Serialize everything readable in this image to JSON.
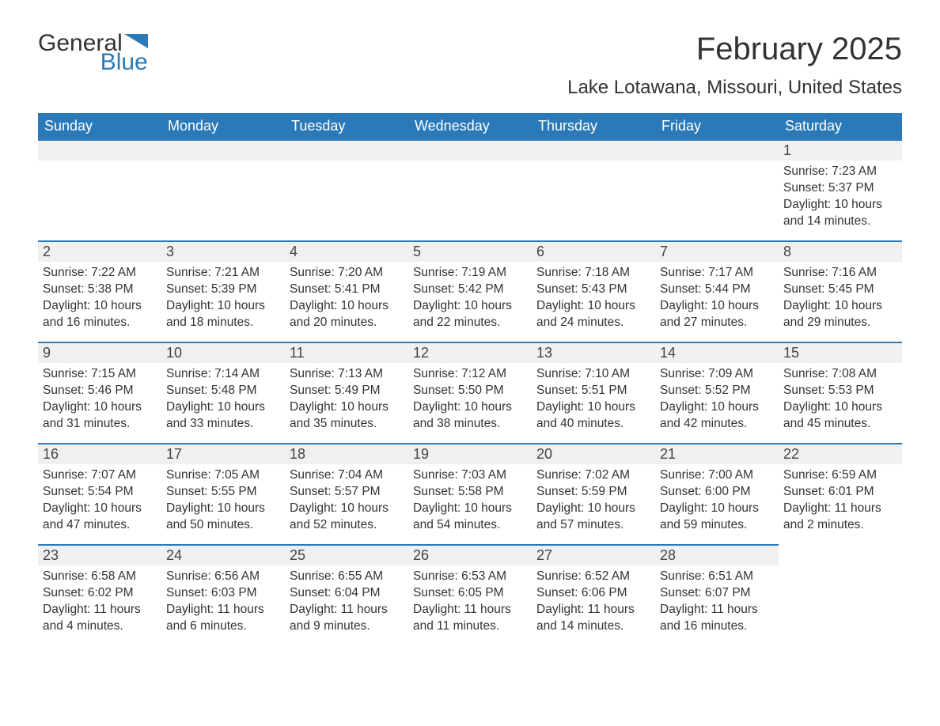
{
  "logo": {
    "general": "General",
    "blue": "Blue",
    "flag_color": "#2a7ab9"
  },
  "title": "February 2025",
  "location": "Lake Lotawana, Missouri, United States",
  "colors": {
    "header_bg": "#2a7ab9",
    "header_text": "#ffffff",
    "daynum_bg": "#f0f0f0",
    "row_border": "#2a7ab9",
    "body_text": "#333333",
    "page_bg": "#ffffff"
  },
  "weekdays": [
    "Sunday",
    "Monday",
    "Tuesday",
    "Wednesday",
    "Thursday",
    "Friday",
    "Saturday"
  ],
  "weeks": [
    [
      {
        "empty": true
      },
      {
        "empty": true
      },
      {
        "empty": true
      },
      {
        "empty": true
      },
      {
        "empty": true
      },
      {
        "empty": true
      },
      {
        "day": "1",
        "sunrise": "Sunrise: 7:23 AM",
        "sunset": "Sunset: 5:37 PM",
        "daylight": "Daylight: 10 hours and 14 minutes."
      }
    ],
    [
      {
        "day": "2",
        "sunrise": "Sunrise: 7:22 AM",
        "sunset": "Sunset: 5:38 PM",
        "daylight": "Daylight: 10 hours and 16 minutes."
      },
      {
        "day": "3",
        "sunrise": "Sunrise: 7:21 AM",
        "sunset": "Sunset: 5:39 PM",
        "daylight": "Daylight: 10 hours and 18 minutes."
      },
      {
        "day": "4",
        "sunrise": "Sunrise: 7:20 AM",
        "sunset": "Sunset: 5:41 PM",
        "daylight": "Daylight: 10 hours and 20 minutes."
      },
      {
        "day": "5",
        "sunrise": "Sunrise: 7:19 AM",
        "sunset": "Sunset: 5:42 PM",
        "daylight": "Daylight: 10 hours and 22 minutes."
      },
      {
        "day": "6",
        "sunrise": "Sunrise: 7:18 AM",
        "sunset": "Sunset: 5:43 PM",
        "daylight": "Daylight: 10 hours and 24 minutes."
      },
      {
        "day": "7",
        "sunrise": "Sunrise: 7:17 AM",
        "sunset": "Sunset: 5:44 PM",
        "daylight": "Daylight: 10 hours and 27 minutes."
      },
      {
        "day": "8",
        "sunrise": "Sunrise: 7:16 AM",
        "sunset": "Sunset: 5:45 PM",
        "daylight": "Daylight: 10 hours and 29 minutes."
      }
    ],
    [
      {
        "day": "9",
        "sunrise": "Sunrise: 7:15 AM",
        "sunset": "Sunset: 5:46 PM",
        "daylight": "Daylight: 10 hours and 31 minutes."
      },
      {
        "day": "10",
        "sunrise": "Sunrise: 7:14 AM",
        "sunset": "Sunset: 5:48 PM",
        "daylight": "Daylight: 10 hours and 33 minutes."
      },
      {
        "day": "11",
        "sunrise": "Sunrise: 7:13 AM",
        "sunset": "Sunset: 5:49 PM",
        "daylight": "Daylight: 10 hours and 35 minutes."
      },
      {
        "day": "12",
        "sunrise": "Sunrise: 7:12 AM",
        "sunset": "Sunset: 5:50 PM",
        "daylight": "Daylight: 10 hours and 38 minutes."
      },
      {
        "day": "13",
        "sunrise": "Sunrise: 7:10 AM",
        "sunset": "Sunset: 5:51 PM",
        "daylight": "Daylight: 10 hours and 40 minutes."
      },
      {
        "day": "14",
        "sunrise": "Sunrise: 7:09 AM",
        "sunset": "Sunset: 5:52 PM",
        "daylight": "Daylight: 10 hours and 42 minutes."
      },
      {
        "day": "15",
        "sunrise": "Sunrise: 7:08 AM",
        "sunset": "Sunset: 5:53 PM",
        "daylight": "Daylight: 10 hours and 45 minutes."
      }
    ],
    [
      {
        "day": "16",
        "sunrise": "Sunrise: 7:07 AM",
        "sunset": "Sunset: 5:54 PM",
        "daylight": "Daylight: 10 hours and 47 minutes."
      },
      {
        "day": "17",
        "sunrise": "Sunrise: 7:05 AM",
        "sunset": "Sunset: 5:55 PM",
        "daylight": "Daylight: 10 hours and 50 minutes."
      },
      {
        "day": "18",
        "sunrise": "Sunrise: 7:04 AM",
        "sunset": "Sunset: 5:57 PM",
        "daylight": "Daylight: 10 hours and 52 minutes."
      },
      {
        "day": "19",
        "sunrise": "Sunrise: 7:03 AM",
        "sunset": "Sunset: 5:58 PM",
        "daylight": "Daylight: 10 hours and 54 minutes."
      },
      {
        "day": "20",
        "sunrise": "Sunrise: 7:02 AM",
        "sunset": "Sunset: 5:59 PM",
        "daylight": "Daylight: 10 hours and 57 minutes."
      },
      {
        "day": "21",
        "sunrise": "Sunrise: 7:00 AM",
        "sunset": "Sunset: 6:00 PM",
        "daylight": "Daylight: 10 hours and 59 minutes."
      },
      {
        "day": "22",
        "sunrise": "Sunrise: 6:59 AM",
        "sunset": "Sunset: 6:01 PM",
        "daylight": "Daylight: 11 hours and 2 minutes."
      }
    ],
    [
      {
        "day": "23",
        "sunrise": "Sunrise: 6:58 AM",
        "sunset": "Sunset: 6:02 PM",
        "daylight": "Daylight: 11 hours and 4 minutes."
      },
      {
        "day": "24",
        "sunrise": "Sunrise: 6:56 AM",
        "sunset": "Sunset: 6:03 PM",
        "daylight": "Daylight: 11 hours and 6 minutes."
      },
      {
        "day": "25",
        "sunrise": "Sunrise: 6:55 AM",
        "sunset": "Sunset: 6:04 PM",
        "daylight": "Daylight: 11 hours and 9 minutes."
      },
      {
        "day": "26",
        "sunrise": "Sunrise: 6:53 AM",
        "sunset": "Sunset: 6:05 PM",
        "daylight": "Daylight: 11 hours and 11 minutes."
      },
      {
        "day": "27",
        "sunrise": "Sunrise: 6:52 AM",
        "sunset": "Sunset: 6:06 PM",
        "daylight": "Daylight: 11 hours and 14 minutes."
      },
      {
        "day": "28",
        "sunrise": "Sunrise: 6:51 AM",
        "sunset": "Sunset: 6:07 PM",
        "daylight": "Daylight: 11 hours and 16 minutes."
      },
      {
        "empty": true,
        "noBar": true
      }
    ]
  ]
}
